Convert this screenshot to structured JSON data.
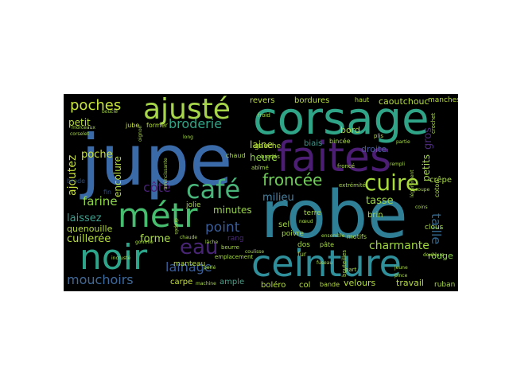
{
  "words": [
    {
      "id": "jupe",
      "text": "jupe",
      "color": "#3b6aa8"
    },
    {
      "id": "robe",
      "text": "robe",
      "color": "#2f7f97"
    },
    {
      "id": "corsage",
      "text": "corsage",
      "color": "#2fa487"
    },
    {
      "id": "faites",
      "text": "faites",
      "color": "#4b1d73"
    },
    {
      "id": "ceinture",
      "text": "ceinture",
      "color": "#2f8f9a"
    },
    {
      "id": "noir",
      "text": "noir",
      "color": "#2ca58a"
    },
    {
      "id": "metr",
      "text": "métr",
      "color": "#47be6f"
    },
    {
      "id": "ajuste",
      "text": "ajusté",
      "color": "#a7d64a"
    },
    {
      "id": "cafe",
      "text": "café",
      "color": "#49b57a"
    },
    {
      "id": "cuire",
      "text": "cuire",
      "color": "#a8db3c"
    },
    {
      "id": "eau",
      "text": "eau",
      "color": "#482575"
    },
    {
      "id": "froncee",
      "text": "froncée",
      "color": "#6fce58"
    },
    {
      "id": "poches",
      "text": "poches",
      "color": "#c7e43a"
    },
    {
      "id": "broderie",
      "text": "broderie",
      "color": "#31a386"
    },
    {
      "id": "mouchoirs",
      "text": "mouchoirs",
      "color": "#3f6a9b"
    },
    {
      "id": "lainage",
      "text": "lainage",
      "color": "#3a5d98"
    },
    {
      "id": "taille",
      "text": "taille",
      "color": "#31678e"
    },
    {
      "id": "point",
      "text": "point",
      "color": "#3a5d98"
    },
    {
      "id": "farine",
      "text": "farine",
      "color": "#8fd64a"
    },
    {
      "id": "cote",
      "text": "côté",
      "color": "#4a2078"
    },
    {
      "id": "charmante",
      "text": "charmante",
      "color": "#a2d83f"
    },
    {
      "id": "ajoutez",
      "text": "ajoutez",
      "color": "#c8df3a"
    },
    {
      "id": "laissez",
      "text": "laissez",
      "color": "#3b9e8d"
    },
    {
      "id": "cuilleree",
      "text": "cuillerée",
      "color": "#b5dd3e"
    },
    {
      "id": "forme",
      "text": "forme",
      "color": "#a9d94a"
    },
    {
      "id": "minutes",
      "text": "minutes",
      "color": "#9ad34a"
    },
    {
      "id": "milieu",
      "text": "milieu",
      "color": "#4682a3"
    },
    {
      "id": "heure",
      "text": "heure",
      "color": "#8fd348"
    },
    {
      "id": "laine",
      "text": "laine",
      "color": "#b7de3d"
    },
    {
      "id": "tasse",
      "text": "tasse",
      "color": "#9cd549"
    },
    {
      "id": "gros",
      "text": "gros",
      "color": "#4b2a7a"
    },
    {
      "id": "petits",
      "text": "petits",
      "color": "#a6d84c"
    },
    {
      "id": "rouge",
      "text": "rouge",
      "color": "#8fd44a"
    },
    {
      "id": "poche",
      "text": "poche",
      "color": "#c9e23a"
    },
    {
      "id": "encolure",
      "text": "encolure",
      "color": "#b5dc3f"
    },
    {
      "id": "petit",
      "text": "petit",
      "color": "#b8df3b"
    },
    {
      "id": "quenouille",
      "text": "quenouille",
      "color": "#b6dd3e"
    },
    {
      "id": "caoutchouc",
      "text": "caoutchouc",
      "color": "#b4dc3c"
    },
    {
      "id": "bordures",
      "text": "bordures",
      "color": "#b8de3d"
    },
    {
      "id": "revers",
      "text": "revers",
      "color": "#b9dd3d"
    },
    {
      "id": "bord",
      "text": "bord",
      "color": "#a8d845"
    },
    {
      "id": "biais",
      "text": "biais",
      "color": "#3a9a8e"
    },
    {
      "id": "droite",
      "text": "droite",
      "color": "#4a5a9c"
    },
    {
      "id": "manches",
      "text": "manches",
      "color": "#b8dd3d"
    },
    {
      "id": "carpe",
      "text": "carpe",
      "color": "#c4e03c"
    },
    {
      "id": "ample",
      "text": "ample",
      "color": "#4b9e88"
    },
    {
      "id": "bolero",
      "text": "boléro",
      "color": "#b6dd3d"
    },
    {
      "id": "col",
      "text": "col",
      "color": "#b6dd3d"
    },
    {
      "id": "velours",
      "text": "velours",
      "color": "#b4dc3d"
    },
    {
      "id": "travail",
      "text": "travail",
      "color": "#b6dd3d"
    },
    {
      "id": "ruban",
      "text": "ruban",
      "color": "#a9d84a"
    },
    {
      "id": "sel",
      "text": "sel",
      "color": "#a7d64a"
    },
    {
      "id": "poivre",
      "text": "poivre",
      "color": "#a9d84a"
    },
    {
      "id": "terre",
      "text": "terre",
      "color": "#a7d44b"
    },
    {
      "id": "brin",
      "text": "brin",
      "color": "#a9d84a"
    },
    {
      "id": "crepe",
      "text": "crêpe",
      "color": "#a9d84a"
    },
    {
      "id": "clous",
      "text": "clous",
      "color": "#a9d84a"
    },
    {
      "id": "motifs",
      "text": "motifs",
      "color": "#a9d84a"
    },
    {
      "id": "dos",
      "text": "dos",
      "color": "#a9d84a"
    },
    {
      "id": "pate",
      "text": "pâte",
      "color": "#a9d84a"
    },
    {
      "id": "jolie",
      "text": "jolie",
      "color": "#a9d84a"
    },
    {
      "id": "fin",
      "text": "fin",
      "color": "#2c4a7a"
    },
    {
      "id": "brode",
      "text": "brode",
      "color": "#2c4a7a"
    },
    {
      "id": "jube",
      "text": "jube",
      "color": "#c9e23a"
    },
    {
      "id": "former",
      "text": "former",
      "color": "#b6dd3d"
    },
    {
      "id": "gauche",
      "text": "gauche",
      "color": "#b6dd3d"
    },
    {
      "id": "chaud",
      "text": "chaud",
      "color": "#a9d84a"
    },
    {
      "id": "rang",
      "text": "rang",
      "color": "#4b2a7a"
    },
    {
      "id": "bande",
      "text": "bande",
      "color": "#b6dd3d"
    },
    {
      "id": "manteau",
      "text": "manteau",
      "color": "#b6dd3d"
    },
    {
      "id": "machine",
      "text": "machine",
      "color": "#a9d84a"
    },
    {
      "id": "part",
      "text": "part",
      "color": "#a9d84a"
    },
    {
      "id": "plis",
      "text": "plis",
      "color": "#b6dd3d"
    },
    {
      "id": "haut",
      "text": "haut",
      "color": "#b6dd3d"
    },
    {
      "id": "coton",
      "text": "coton",
      "color": "#a9d84a"
    },
    {
      "id": "bouteilles",
      "text": "bouteilles",
      "color": "#a9d84a"
    },
    {
      "id": "beurre",
      "text": "beurre",
      "color": "#a9d84a"
    },
    {
      "id": "abime",
      "text": "abîmé",
      "color": "#a9d84a"
    },
    {
      "id": "crochet",
      "text": "crochet",
      "color": "#a9d84a"
    },
    {
      "id": "extremite",
      "text": "extrémité",
      "color": "#a9d84a"
    },
    {
      "id": "fronce",
      "text": "froncé",
      "color": "#a9d84a"
    },
    {
      "id": "froid",
      "text": "froid",
      "color": "#a9d84a"
    },
    {
      "id": "brodes",
      "text": "brodés",
      "color": "#a9d84a"
    },
    {
      "id": "emplacement",
      "text": "emplacement",
      "color": "#a9d84a"
    },
    {
      "id": "corselet",
      "text": "corselet",
      "color": "#a9d84a"
    },
    {
      "id": "amincissante",
      "text": "amincissante",
      "color": "#a9d84a"
    },
    {
      "id": "boucle",
      "text": "boucle",
      "color": "#a9d84a"
    },
    {
      "id": "morceaux",
      "text": "morceaux",
      "color": "#a9d84a"
    },
    {
      "id": "gomme",
      "text": "gomme",
      "color": "#a9d84a"
    },
    {
      "id": "coulisse",
      "text": "coulisse",
      "color": "#a9d84a"
    },
    {
      "id": "long",
      "text": "long",
      "color": "#a9d84a"
    },
    {
      "id": "chaude",
      "text": "chaude",
      "color": "#a9d84a"
    },
    {
      "id": "incruste",
      "text": "incrusté",
      "color": "#a9d84a"
    },
    {
      "id": "lache",
      "text": "lâche",
      "color": "#a9d84a"
    },
    {
      "id": "perle",
      "text": "perlé",
      "color": "#a9d84a"
    },
    {
      "id": "noeud",
      "text": "nœud",
      "color": "#a9d84a"
    },
    {
      "id": "ensemble",
      "text": "ensemble",
      "color": "#a9d84a"
    },
    {
      "id": "pince",
      "text": "pince",
      "color": "#a9d84a"
    },
    {
      "id": "jeune",
      "text": "jeune",
      "color": "#a9d84a"
    },
    {
      "id": "fur",
      "text": "fur",
      "color": "#a9d84a"
    },
    {
      "id": "fuseau",
      "text": "fuseau",
      "color": "#a9d84a"
    },
    {
      "id": "bincee",
      "text": "bincée",
      "color": "#a9d84a"
    },
    {
      "id": "partie",
      "text": "partie",
      "color": "#a9d84a"
    },
    {
      "id": "legerement",
      "text": "légèrement",
      "color": "#a9d84a"
    },
    {
      "id": "rempli",
      "text": "rempli",
      "color": "#a9d84a"
    },
    {
      "id": "doublure",
      "text": "doublure",
      "color": "#a9d84a"
    },
    {
      "id": "coins",
      "text": "coins",
      "color": "#a9d84a"
    },
    {
      "id": "drapes",
      "text": "drapés",
      "color": "#a9d84a"
    },
    {
      "id": "oignon",
      "text": "oignon",
      "color": "#a9d84a"
    },
    {
      "id": "coupe",
      "text": "coupe",
      "color": "#a9d84a"
    }
  ]
}
